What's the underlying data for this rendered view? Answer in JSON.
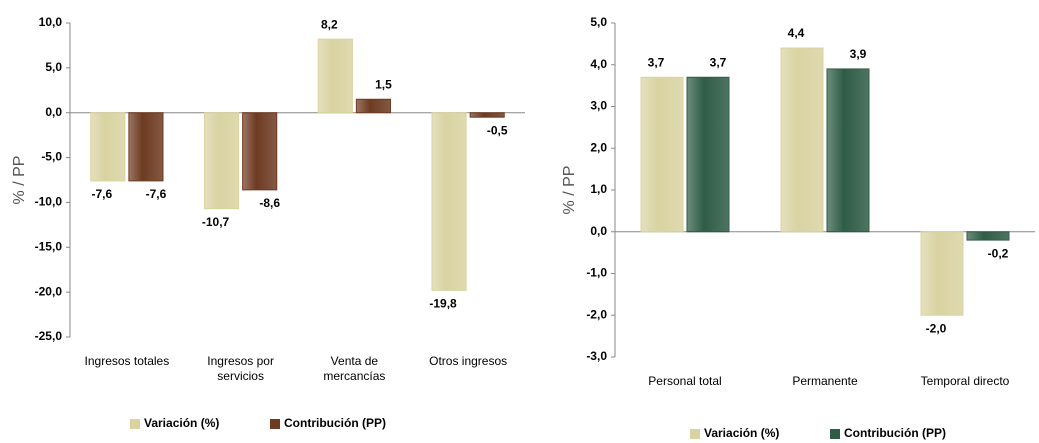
{
  "chart_data": [
    {
      "type": "bar",
      "y_label": "% / PP",
      "categories": [
        "Ingresos totales",
        "Ingresos por servicios",
        "Venta de mercancías",
        "Otros ingresos"
      ],
      "series": [
        {
          "name": "Variación (%)",
          "color": "#d9d3a2",
          "values": [
            -7.6,
            -10.7,
            8.2,
            -19.8
          ],
          "value_labels": [
            "-7,6",
            "-10,7",
            "8,2",
            "-19,8"
          ]
        },
        {
          "name": "Contribución (PP)",
          "color": "#6e3b22",
          "values": [
            -7.6,
            -8.6,
            1.5,
            -0.5
          ],
          "value_labels": [
            "-7,6",
            "-8,6",
            "1,5",
            "-0,5"
          ]
        }
      ],
      "ylim": [
        -25,
        10
      ],
      "yticks": [
        {
          "value": -25,
          "label": "-25,0"
        },
        {
          "value": -20,
          "label": "-20,0"
        },
        {
          "value": -15,
          "label": "-15,0"
        },
        {
          "value": -10,
          "label": "-10,0"
        },
        {
          "value": -5,
          "label": "-5,0"
        },
        {
          "value": 0,
          "label": "0,0"
        },
        {
          "value": 5,
          "label": "5,0"
        },
        {
          "value": 10,
          "label": "10,0"
        }
      ],
      "legend": "bottom"
    },
    {
      "type": "bar",
      "y_label": "% / PP",
      "categories": [
        "Personal total",
        "Permanente",
        "Temporal directo"
      ],
      "series": [
        {
          "name": "Variación (%)",
          "color": "#d9d3a2",
          "values": [
            3.7,
            4.4,
            -2.0
          ],
          "value_labels": [
            "3,7",
            "4,4",
            "-2,0"
          ]
        },
        {
          "name": "Contribución (PP)",
          "color": "#2f5c46",
          "values": [
            3.7,
            3.9,
            -0.2
          ],
          "value_labels": [
            "3,7",
            "3,9",
            "-0,2"
          ]
        }
      ],
      "ylim": [
        -3,
        5
      ],
      "yticks": [
        {
          "value": -3,
          "label": "-3,0"
        },
        {
          "value": -2,
          "label": "-2,0"
        },
        {
          "value": -1,
          "label": "-1,0"
        },
        {
          "value": 0,
          "label": "0,0"
        },
        {
          "value": 1,
          "label": "1,0"
        },
        {
          "value": 2,
          "label": "2,0"
        },
        {
          "value": 3,
          "label": "3,0"
        },
        {
          "value": 4,
          "label": "4,0"
        },
        {
          "value": 5,
          "label": "5,0"
        }
      ],
      "legend": "bottom"
    }
  ]
}
